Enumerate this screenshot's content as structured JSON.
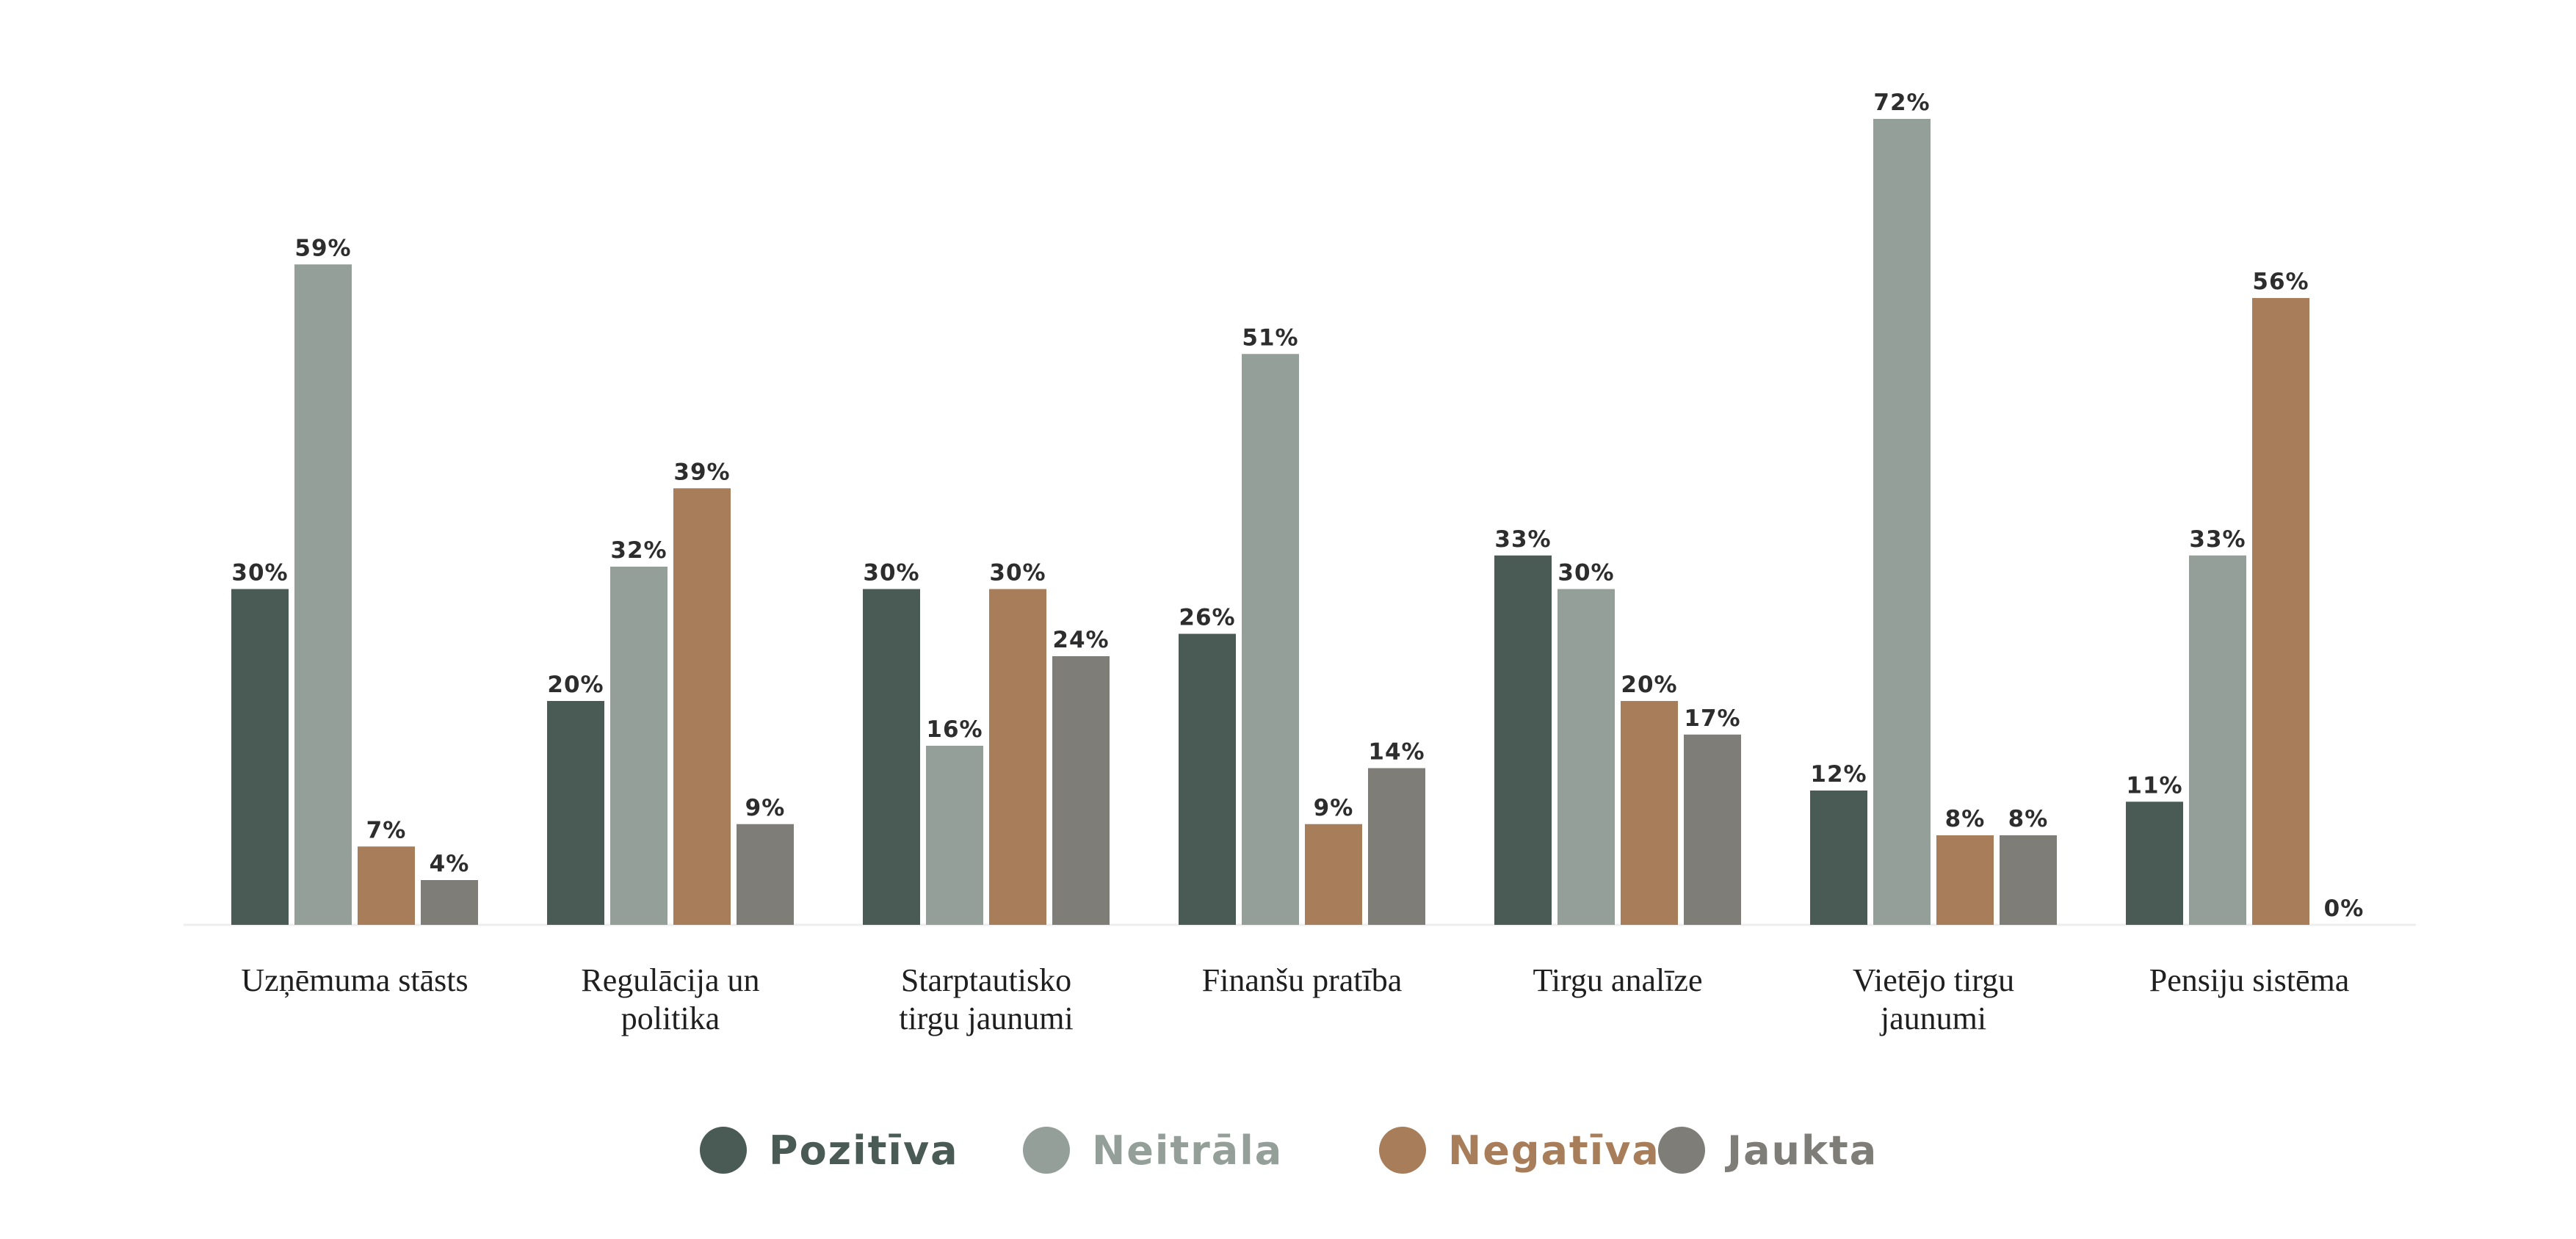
{
  "chart_data": {
    "type": "bar",
    "categories": [
      [
        "Uzņēmuma stāsts"
      ],
      [
        "Regulācija un",
        "politika"
      ],
      [
        "Starptautisko",
        "tirgu jaunumi"
      ],
      [
        "Finanšu pratība"
      ],
      [
        "Tirgu analīze"
      ],
      [
        "Vietējo tirgu",
        "jaunumi"
      ],
      [
        "Pensiju sistēma"
      ]
    ],
    "series": [
      {
        "name": "Pozitīva",
        "color": "#4a5a55",
        "values": [
          30,
          20,
          30,
          26,
          33,
          12,
          11
        ],
        "labels": [
          "30%",
          "20%",
          "30%",
          "26%",
          "33%",
          "12%",
          "11%"
        ]
      },
      {
        "name": "Neitrāla",
        "color": "#939f98",
        "values": [
          59,
          32,
          16,
          51,
          30,
          72,
          33
        ],
        "labels": [
          "59%",
          "32%",
          "16%",
          "51%",
          "30%",
          "72%",
          "33%"
        ]
      },
      {
        "name": "Negatīva",
        "color": "#a87e5a",
        "values": [
          7,
          39,
          30,
          9,
          20,
          8,
          56
        ],
        "labels": [
          "7%",
          "39%",
          "30%",
          "9%",
          "20%",
          "8%",
          "56%"
        ]
      },
      {
        "name": "Jaukta",
        "color": "#7f7d78",
        "values": [
          4,
          9,
          24,
          14,
          17,
          8,
          0
        ],
        "labels": [
          "4%",
          "9%",
          "24%",
          "14%",
          "17%",
          "8%",
          "0%"
        ]
      }
    ],
    "ylim": [
      0,
      72
    ],
    "grid": false,
    "legend_position": "bottom-center"
  }
}
